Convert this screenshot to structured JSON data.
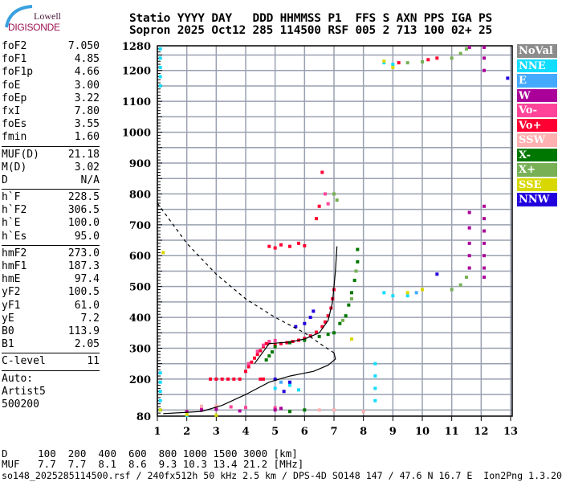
{
  "logo": {
    "line1": "Lowell",
    "line2": "DIGISONDE"
  },
  "header": {
    "line1": "Statio YYYY DAY   DDD HHMMSS P1  FFS S AXN PPS IGA PS",
    "line2": "Sopron 2025 Oct12 285 114500 RSF 005 2 713 100 02+ 25"
  },
  "params": [
    [
      {
        "k": "foF2",
        "v": "7.050"
      },
      {
        "k": "foF1",
        "v": "4.85"
      },
      {
        "k": "foF1p",
        "v": "4.66"
      },
      {
        "k": "foE",
        "v": "3.00"
      },
      {
        "k": "foEp",
        "v": "3.22"
      },
      {
        "k": "fxI",
        "v": "7.80"
      },
      {
        "k": "foEs",
        "v": "3.55"
      },
      {
        "k": "fmin",
        "v": "1.60"
      }
    ],
    [
      {
        "k": "MUF(D)",
        "v": "21.18"
      },
      {
        "k": "M(D)",
        "v": "3.02"
      },
      {
        "k": "D",
        "v": "N/A"
      }
    ],
    [
      {
        "k": "h`F",
        "v": "228.5"
      },
      {
        "k": "h`F2",
        "v": "306.5"
      },
      {
        "k": "h`E",
        "v": "100.0"
      },
      {
        "k": "h`Es",
        "v": "95.0"
      }
    ],
    [
      {
        "k": "hmF2",
        "v": "273.0"
      },
      {
        "k": "hmF1",
        "v": "187.3"
      },
      {
        "k": "hmE",
        "v": "97.4"
      },
      {
        "k": "yF2",
        "v": "100.5"
      },
      {
        "k": "yF1",
        "v": "61.0"
      },
      {
        "k": "yE",
        "v": "7.2"
      },
      {
        "k": "B0",
        "v": "113.9"
      },
      {
        "k": "B1",
        "v": "2.05"
      }
    ],
    [
      {
        "k": "C-level",
        "v": "11"
      }
    ]
  ],
  "auto": {
    "line1": "Auto:",
    "line2": "Artist5",
    "line3": "500200"
  },
  "legend": [
    {
      "label": "NoVal",
      "color": "#8c8c8c"
    },
    {
      "label": "NNE",
      "color": "#11ddff"
    },
    {
      "label": "E",
      "color": "#44aaff"
    },
    {
      "label": "W",
      "color": "#aa0099"
    },
    {
      "label": "Vo-",
      "color": "#ff4499"
    },
    {
      "label": "Vo+",
      "color": "#ff0033"
    },
    {
      "label": "SSW",
      "color": "#ffb0b0"
    },
    {
      "label": "X-",
      "color": "#007700"
    },
    {
      "label": "X+",
      "color": "#77b055"
    },
    {
      "label": "SSE",
      "color": "#d8d800"
    },
    {
      "label": "NNW",
      "color": "#2200dd"
    }
  ],
  "footer": {
    "d_row": "D     100  200  400  600  800 1000 1500 3000 [km]",
    "muf_row": "MUF   7.7  7.7  8.1  8.6  9.3 10.3 13.4 21.2 [MHz]",
    "info": "so148_2025285114500.rsf / 240fx512h 50 kHz 2.5 km / DPS-4D SO148 147 / 47.6 N 16.7 E  Ion2Png 1.3.20"
  },
  "chart_data": {
    "type": "scatter",
    "xlim": [
      1,
      13
    ],
    "ylim": [
      80,
      1280
    ],
    "xticks": [
      "1",
      "2",
      "3",
      "4",
      "5",
      "6",
      "7",
      "8",
      "9",
      "10",
      "11",
      "12",
      "13"
    ],
    "yticks": [
      "80",
      "200",
      "300",
      "400",
      "500",
      "600",
      "700",
      "800",
      "900",
      "1000",
      "1100",
      "1200",
      "1280"
    ],
    "grid": true,
    "legend_placement": "right",
    "series": [
      {
        "name": "Vo+",
        "points": [
          [
            4.0,
            225
          ],
          [
            4.1,
            240
          ],
          [
            4.2,
            255
          ],
          [
            4.3,
            268
          ],
          [
            4.4,
            280
          ],
          [
            4.5,
            292
          ],
          [
            4.6,
            305
          ],
          [
            4.7,
            315
          ],
          [
            4.8,
            318
          ],
          [
            5.0,
            312
          ],
          [
            5.2,
            315
          ],
          [
            5.4,
            318
          ],
          [
            5.6,
            322
          ],
          [
            5.8,
            326
          ],
          [
            6.0,
            332
          ],
          [
            6.2,
            340
          ],
          [
            6.4,
            352
          ],
          [
            6.6,
            370
          ],
          [
            6.7,
            385
          ],
          [
            6.8,
            405
          ],
          [
            6.9,
            430
          ],
          [
            6.95,
            460
          ],
          [
            7.0,
            490
          ],
          [
            2.8,
            200
          ],
          [
            3.0,
            200
          ],
          [
            3.2,
            200
          ],
          [
            3.4,
            200
          ],
          [
            3.6,
            200
          ],
          [
            3.8,
            200
          ],
          [
            4.5,
            200
          ],
          [
            4.6,
            200
          ],
          [
            4.8,
            630
          ],
          [
            5.0,
            625
          ],
          [
            5.2,
            635
          ],
          [
            5.5,
            630
          ],
          [
            5.8,
            640
          ],
          [
            6.0,
            632
          ],
          [
            6.4,
            720
          ],
          [
            6.5,
            760
          ],
          [
            6.6,
            870
          ],
          [
            9.2,
            1225
          ],
          [
            10.2,
            1235
          ],
          [
            10.5,
            1240
          ]
        ]
      },
      {
        "name": "Vo-",
        "points": [
          [
            4.1,
            250
          ],
          [
            4.4,
            290
          ],
          [
            4.6,
            310
          ],
          [
            4.8,
            322
          ],
          [
            5.0,
            325
          ],
          [
            2.5,
            105
          ],
          [
            3.0,
            108
          ],
          [
            3.5,
            110
          ],
          [
            4.0,
            108
          ],
          [
            5.0,
            107
          ],
          [
            6.7,
            800
          ],
          [
            6.8,
            768
          ]
        ]
      },
      {
        "name": "W",
        "points": [
          [
            2.0,
            95
          ],
          [
            2.5,
            100
          ],
          [
            3.0,
            102
          ],
          [
            3.8,
            97
          ],
          [
            5.0,
            100
          ],
          [
            5.2,
            105
          ],
          [
            11.6,
            560
          ],
          [
            11.6,
            600
          ],
          [
            11.6,
            640
          ],
          [
            11.6,
            690
          ],
          [
            11.6,
            740
          ],
          [
            12.1,
            530
          ],
          [
            12.1,
            560
          ],
          [
            12.1,
            600
          ],
          [
            12.1,
            640
          ],
          [
            12.1,
            680
          ],
          [
            12.1,
            720
          ],
          [
            12.1,
            760
          ],
          [
            12.1,
            1200
          ],
          [
            12.1,
            1240
          ],
          [
            12.1,
            1275
          ],
          [
            11.6,
            1275
          ]
        ]
      },
      {
        "name": "X-",
        "points": [
          [
            4.7,
            262
          ],
          [
            4.8,
            275
          ],
          [
            4.9,
            288
          ],
          [
            5.0,
            305
          ],
          [
            5.5,
            318
          ],
          [
            6.0,
            326
          ],
          [
            6.5,
            338
          ],
          [
            6.8,
            345
          ],
          [
            7.0,
            350
          ],
          [
            7.2,
            380
          ],
          [
            7.4,
            405
          ],
          [
            7.5,
            440
          ],
          [
            7.6,
            480
          ],
          [
            7.7,
            520
          ],
          [
            7.8,
            580
          ],
          [
            7.8,
            620
          ],
          [
            5.5,
            95
          ],
          [
            6.0,
            100
          ]
        ]
      },
      {
        "name": "X+",
        "points": [
          [
            7.3,
            390
          ],
          [
            7.6,
            460
          ],
          [
            7.75,
            550
          ],
          [
            9.5,
            1225
          ],
          [
            10.0,
            1228
          ],
          [
            11.0,
            1240
          ],
          [
            11.3,
            1255
          ],
          [
            11.5,
            1270
          ],
          [
            11.0,
            490
          ],
          [
            11.3,
            505
          ],
          [
            11.5,
            530
          ],
          [
            7.0,
            800
          ],
          [
            7.1,
            780
          ]
        ]
      },
      {
        "name": "NNE",
        "points": [
          [
            1.1,
            1150
          ],
          [
            1.1,
            1180
          ],
          [
            1.1,
            1210
          ],
          [
            1.1,
            1240
          ],
          [
            1.1,
            1270
          ],
          [
            1.1,
            100
          ],
          [
            1.1,
            130
          ],
          [
            1.1,
            160
          ],
          [
            1.1,
            190
          ],
          [
            1.1,
            220
          ],
          [
            8.7,
            480
          ],
          [
            9.0,
            470
          ],
          [
            9.5,
            470
          ],
          [
            8.7,
            1225
          ],
          [
            9.0,
            1220
          ],
          [
            2.0,
            82
          ],
          [
            5.0,
            170
          ],
          [
            5.5,
            180
          ],
          [
            5.8,
            165
          ],
          [
            8.4,
            130
          ],
          [
            8.4,
            170
          ],
          [
            8.4,
            210
          ],
          [
            8.4,
            250
          ]
        ]
      },
      {
        "name": "E",
        "points": [
          [
            9.8,
            480
          ],
          [
            5.2,
            190
          ]
        ]
      },
      {
        "name": "NNW",
        "points": [
          [
            5.0,
            200
          ],
          [
            5.5,
            190
          ],
          [
            5.3,
            160
          ],
          [
            6.0,
            380
          ],
          [
            6.2,
            400
          ],
          [
            6.3,
            420
          ],
          [
            5.7,
            370
          ],
          [
            12.9,
            1175
          ],
          [
            10.5,
            540
          ]
        ]
      },
      {
        "name": "SSE",
        "points": [
          [
            1.2,
            610
          ],
          [
            1.1,
            100
          ],
          [
            2.0,
            85
          ],
          [
            3.0,
            83
          ],
          [
            7.6,
            330
          ],
          [
            9.5,
            480
          ],
          [
            10.0,
            490
          ],
          [
            9.0,
            1210
          ],
          [
            8.7,
            1230
          ]
        ]
      },
      {
        "name": "SSW",
        "points": [
          [
            2.5,
            112
          ],
          [
            3.0,
            113
          ],
          [
            6.5,
            100
          ],
          [
            7.0,
            100
          ],
          [
            8.0,
            95
          ]
        ]
      }
    ],
    "profile_curves": [
      {
        "style": "dashed",
        "points": [
          [
            1,
            770
          ],
          [
            2,
            640
          ],
          [
            3,
            540
          ],
          [
            4,
            460
          ],
          [
            5,
            400
          ],
          [
            6,
            350
          ],
          [
            6.6,
            310
          ],
          [
            7.0,
            285
          ]
        ]
      },
      {
        "style": "solid",
        "points": [
          [
            1.2,
            88
          ],
          [
            2.5,
            95
          ],
          [
            3.2,
            115
          ],
          [
            4.0,
            150
          ],
          [
            4.8,
            190
          ],
          [
            5.5,
            210
          ],
          [
            6.3,
            225
          ],
          [
            6.8,
            245
          ],
          [
            7.05,
            265
          ],
          [
            7.0,
            285
          ]
        ]
      },
      {
        "style": "solid",
        "points": [
          [
            4.3,
            250
          ],
          [
            4.8,
            315
          ],
          [
            5.5,
            320
          ],
          [
            6.0,
            330
          ],
          [
            6.5,
            350
          ],
          [
            6.8,
            390
          ],
          [
            6.95,
            450
          ],
          [
            7.05,
            550
          ],
          [
            7.1,
            630
          ]
        ]
      }
    ]
  }
}
